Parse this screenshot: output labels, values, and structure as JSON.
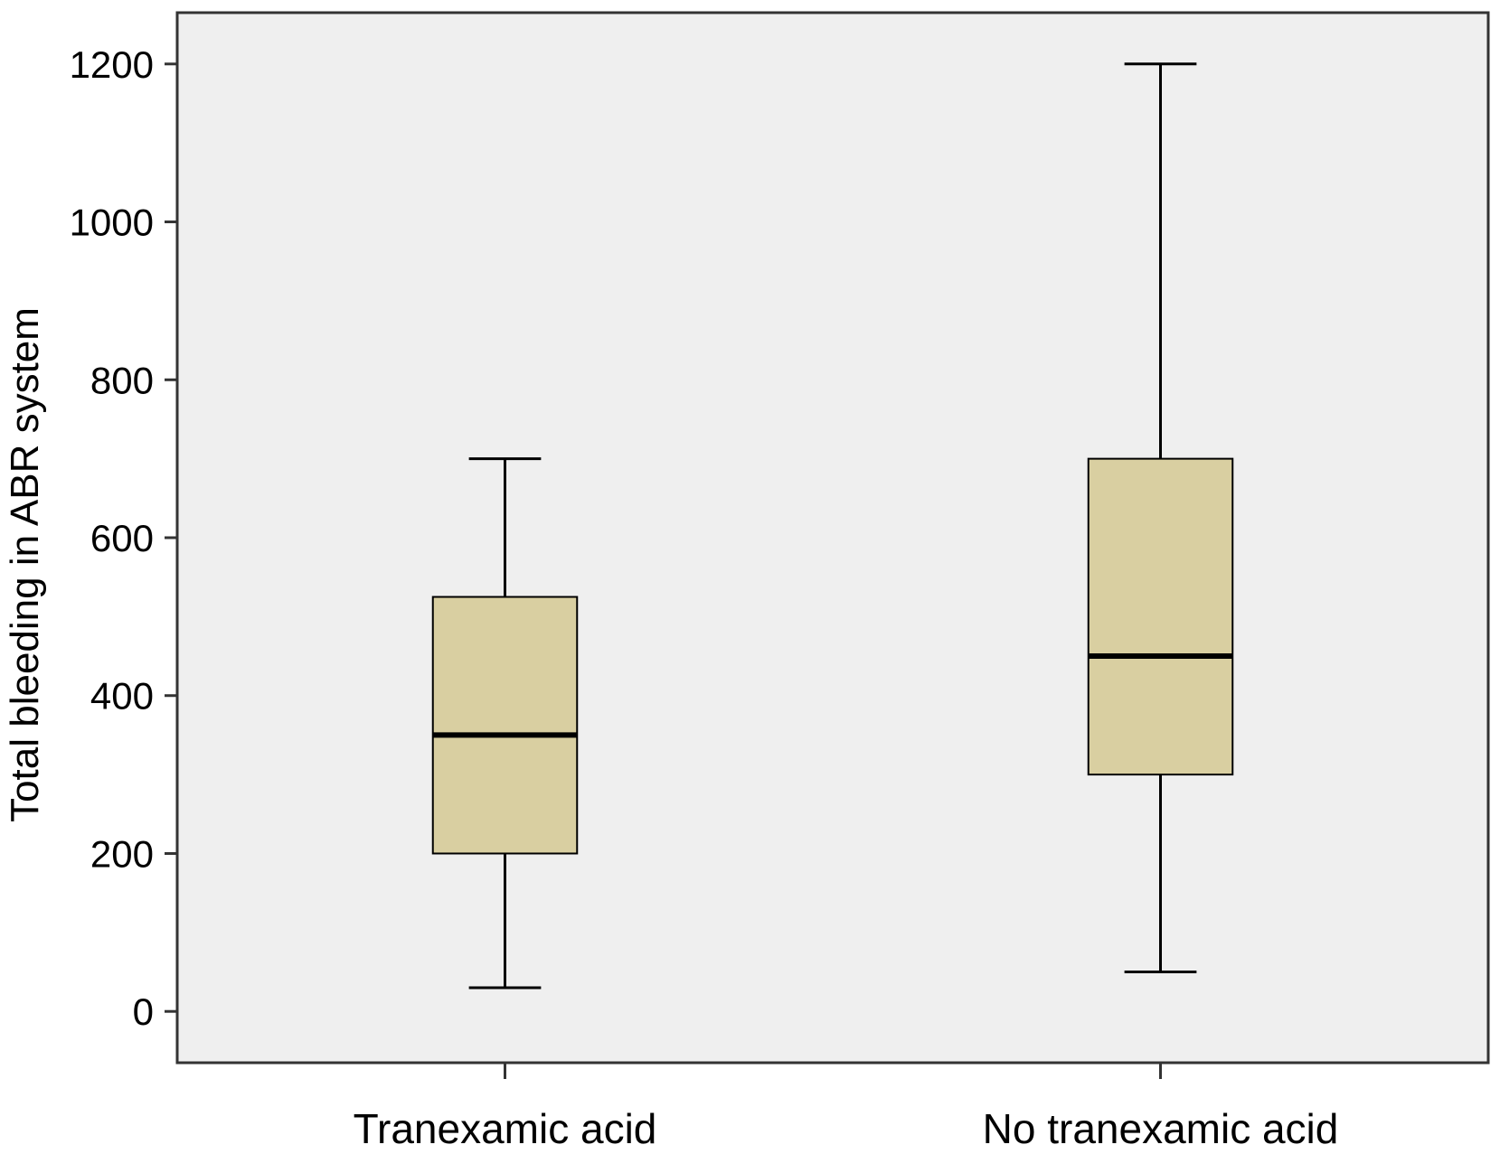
{
  "chart_data": {
    "type": "boxplot",
    "title": "",
    "xlabel": "",
    "ylabel": "Total bleeding in ABR system",
    "ylim": [
      -65,
      1265
    ],
    "yticks": [
      0,
      200,
      400,
      600,
      800,
      1000,
      1200
    ],
    "grid": false,
    "legend": "none",
    "categories": [
      "Tranexamic acid",
      "No tranexamic acid"
    ],
    "boxes": [
      {
        "category": "Tranexamic acid",
        "min": 30,
        "q1": 200,
        "median": 350,
        "q3": 525,
        "max": 700
      },
      {
        "category": "No tranexamic acid",
        "min": 50,
        "q1": 300,
        "median": 450,
        "q3": 700,
        "max": 1200
      }
    ],
    "colors": {
      "plot_background": "#efefef",
      "box_fill": "#d9cfa1",
      "stroke": "#000000",
      "frame": "#333333"
    }
  }
}
